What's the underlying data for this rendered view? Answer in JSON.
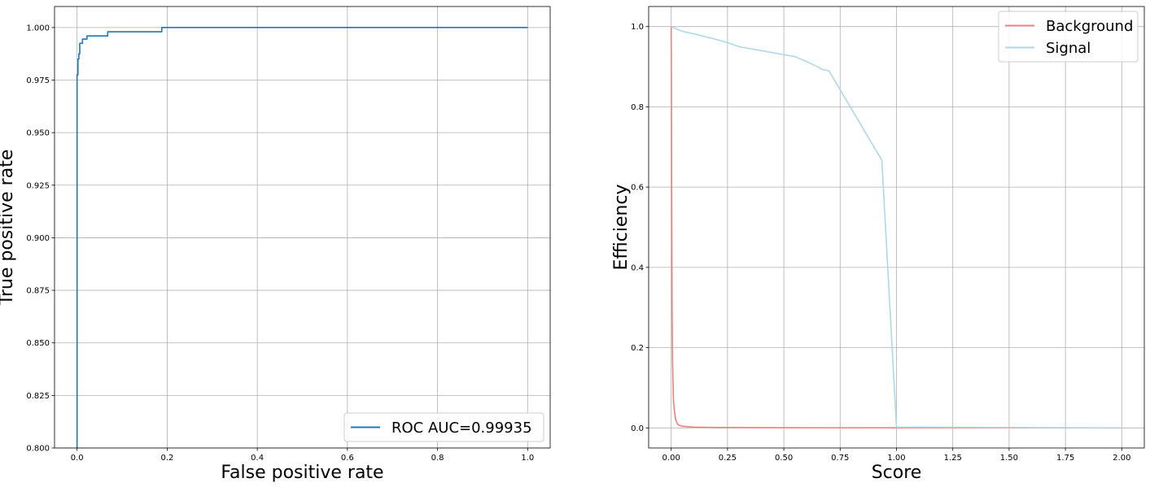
{
  "chart_data": [
    {
      "type": "line",
      "xlabel": "False positive rate",
      "ylabel": "True positive rate",
      "xlim": [
        -0.05,
        1.05
      ],
      "ylim": [
        0.8,
        1.01
      ],
      "grid": true,
      "legend_position": "lower-right",
      "x_ticks": [
        0.0,
        0.2,
        0.4,
        0.6,
        0.8,
        1.0
      ],
      "x_tick_labels": [
        "0.0",
        "0.2",
        "0.4",
        "0.6",
        "0.8",
        "1.0"
      ],
      "y_ticks": [
        0.8,
        0.825,
        0.85,
        0.875,
        0.9,
        0.925,
        0.95,
        0.975,
        1.0
      ],
      "y_tick_labels": [
        "0.800",
        "0.825",
        "0.850",
        "0.875",
        "0.900",
        "0.925",
        "0.950",
        "0.975",
        "1.000"
      ],
      "series": [
        {
          "name": "ROC AUC=0.99935",
          "color": "#1f77b4",
          "step": true,
          "x": [
            0.0,
            0.0,
            0.002,
            0.002,
            0.004,
            0.004,
            0.006,
            0.006,
            0.012,
            0.012,
            0.022,
            0.022,
            0.03,
            0.03,
            0.068,
            0.068,
            0.188,
            0.188,
            1.0
          ],
          "y": [
            0.8,
            0.9775,
            0.9775,
            0.985,
            0.985,
            0.9875,
            0.9875,
            0.9925,
            0.9925,
            0.9945,
            0.9945,
            0.996,
            0.996,
            0.996,
            0.996,
            0.998,
            0.998,
            1.0,
            1.0
          ]
        }
      ]
    },
    {
      "type": "line",
      "xlabel": "Score",
      "ylabel": "Efficiency",
      "xlim": [
        -0.1,
        2.1
      ],
      "ylim": [
        -0.05,
        1.05
      ],
      "grid": true,
      "legend_position": "upper-right",
      "x_ticks": [
        0.0,
        0.25,
        0.5,
        0.75,
        1.0,
        1.25,
        1.5,
        1.75,
        2.0
      ],
      "x_tick_labels": [
        "0.00",
        "0.25",
        "0.50",
        "0.75",
        "1.00",
        "1.25",
        "1.50",
        "1.75",
        "2.00"
      ],
      "y_ticks": [
        0.0,
        0.2,
        0.4,
        0.6,
        0.8,
        1.0
      ],
      "y_tick_labels": [
        "0.0",
        "0.2",
        "0.4",
        "0.6",
        "0.8",
        "1.0"
      ],
      "series": [
        {
          "name": "Background",
          "color": "#f08080",
          "x": [
            0.0,
            0.001,
            0.002,
            0.004,
            0.006,
            0.01,
            0.015,
            0.02,
            0.03,
            0.05,
            0.1,
            0.2,
            0.5,
            1.0,
            2.0
          ],
          "y": [
            1.0,
            0.85,
            0.6,
            0.3,
            0.17,
            0.07,
            0.04,
            0.02,
            0.008,
            0.004,
            0.002,
            0.001,
            0.0005,
            0.0002,
            0.0001
          ],
          "x_end": 1.0
        },
        {
          "name": "Signal",
          "color": "#add8e6",
          "x": [
            0.0,
            0.02,
            0.05,
            0.1,
            0.15,
            0.2,
            0.25,
            0.3,
            0.4,
            0.5,
            0.55,
            0.6,
            0.65,
            0.67,
            0.7,
            0.935,
            0.935,
            1.0,
            1.0,
            1.5,
            2.0
          ],
          "y": [
            1.0,
            0.995,
            0.988,
            0.982,
            0.975,
            0.968,
            0.96,
            0.95,
            0.94,
            0.93,
            0.925,
            0.913,
            0.9,
            0.893,
            0.89,
            0.667,
            0.667,
            0.002,
            0.002,
            0.001,
            0.0
          ]
        }
      ]
    }
  ]
}
